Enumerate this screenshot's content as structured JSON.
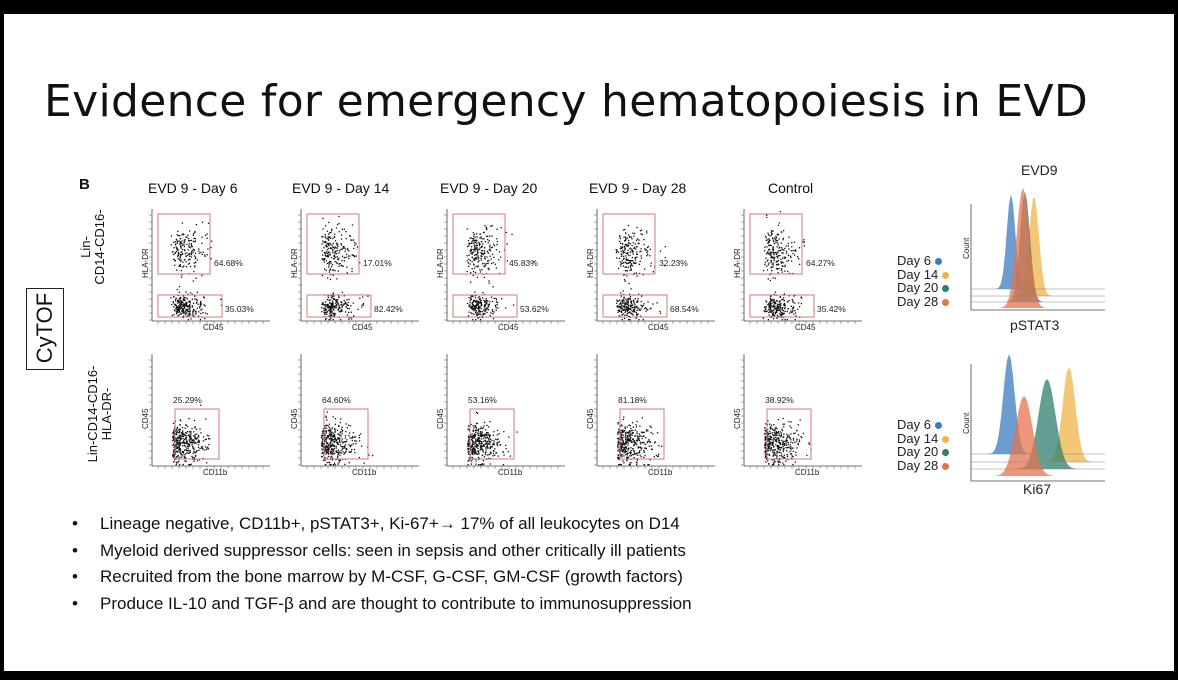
{
  "title": "Evidence for emergency hematopoiesis in EVD",
  "figure": {
    "panel_letter": "B",
    "method_label": "CyTOF",
    "columns": [
      "EVD 9 - Day 6",
      "EVD 9 - Day 14",
      "EVD 9 - Day 20",
      "EVD 9 - Day 28",
      "Control"
    ],
    "row1": {
      "label_line1": "Lin-",
      "label_line2": "CD14-CD16-",
      "x_axis": "CD45",
      "y_axis": "HLA-DR",
      "upper_pct": [
        "64.68%",
        "17.01%",
        "45.83%",
        "32.23%",
        "64.27%"
      ],
      "lower_pct": [
        "35.03%",
        "82.42%",
        "53.62%",
        "68.54%",
        "35.42%"
      ]
    },
    "row2": {
      "label_line1": "Lin-CD14-CD16-",
      "label_line2": "HLA-DR-",
      "x_axis": "CD11b",
      "y_axis": "CD45",
      "gate_pct": [
        "25.29%",
        "64.60%",
        "53.16%",
        "81.18%",
        "38.92%"
      ]
    },
    "histograms": {
      "top": {
        "title": "EVD9",
        "xlabel": "pSTAT3",
        "ylabel": "Count"
      },
      "bottom": {
        "xlabel": "Ki67",
        "ylabel": "Count"
      },
      "series": [
        {
          "name": "Day 6",
          "color": "#3a7cc2"
        },
        {
          "name": "Day 14",
          "color": "#f0b34a"
        },
        {
          "name": "Day 20",
          "color": "#2e7f6e"
        },
        {
          "name": "Day 28",
          "color": "#e5734f"
        }
      ]
    }
  },
  "bullets": [
    "Lineage negative, CD11b+, pSTAT3+, Ki-67+→ 17% of all leukocytes on D14",
    "Myeloid derived suppressor cells: seen in sepsis and other critically ill patients",
    "Recruited from the bone marrow by M-CSF, G-CSF, GM-CSF (growth factors)",
    "Produce IL-10 and TGF-β and are thought to contribute to immunosuppression"
  ]
}
